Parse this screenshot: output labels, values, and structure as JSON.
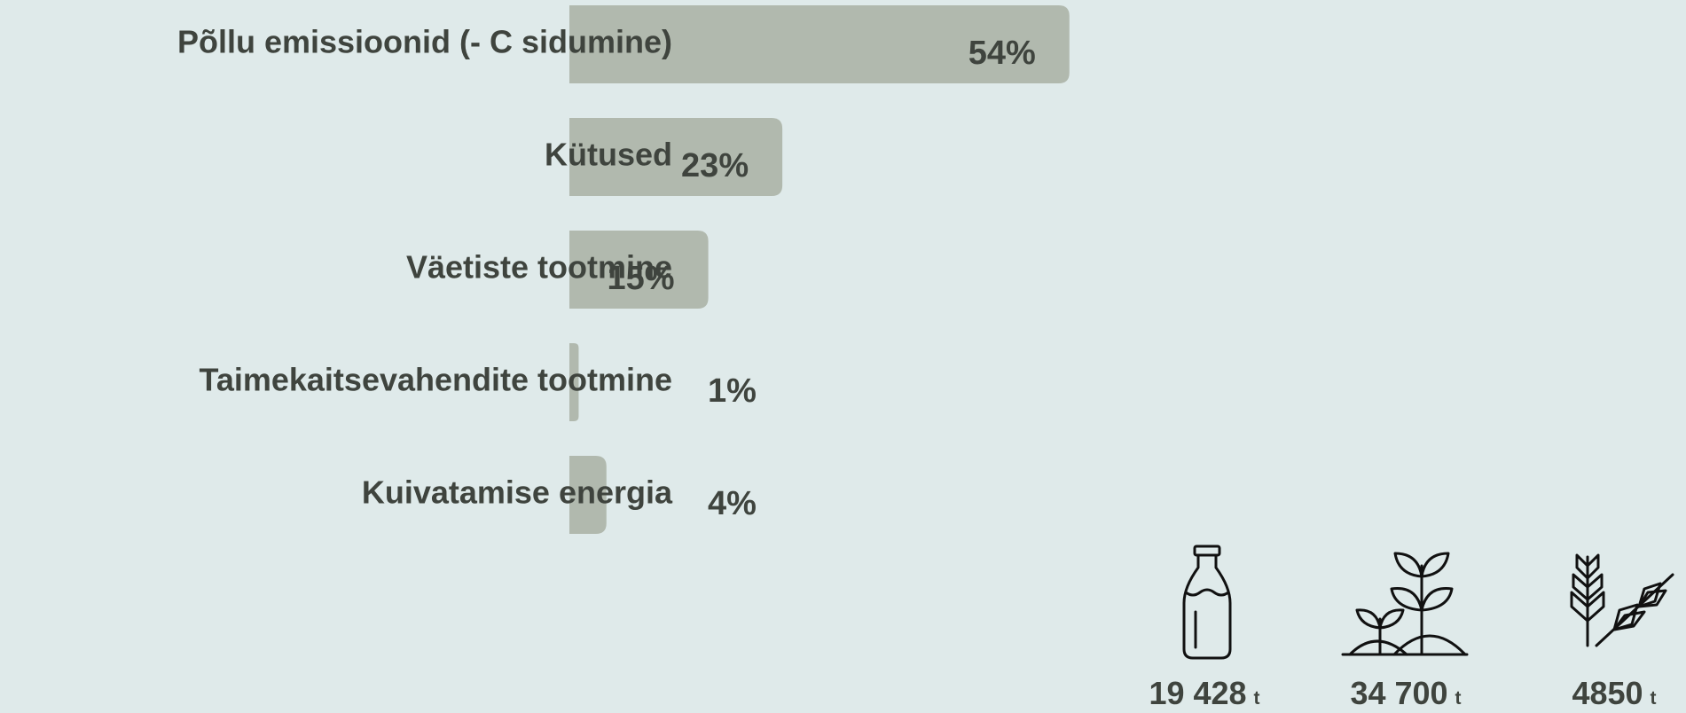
{
  "chart_data": {
    "type": "barh",
    "categories": [
      "Põllu emissioonid (- C sidumine)",
      "Kütused",
      "Väetiste tootmine",
      "Taimekaitsevahendite tootmine",
      "Kuivatamise energia"
    ],
    "values": [
      54,
      23,
      15,
      1,
      4
    ],
    "value_labels": [
      "54%",
      "23%",
      "15%",
      "1%",
      "4%"
    ],
    "color": "#b1b9ae",
    "xlim": [
      0,
      100
    ]
  },
  "stats": [
    {
      "amount": "19 428",
      "unit": "t"
    },
    {
      "amount": "34 700",
      "unit": "t"
    },
    {
      "amount": "4850",
      "unit": "t"
    }
  ]
}
